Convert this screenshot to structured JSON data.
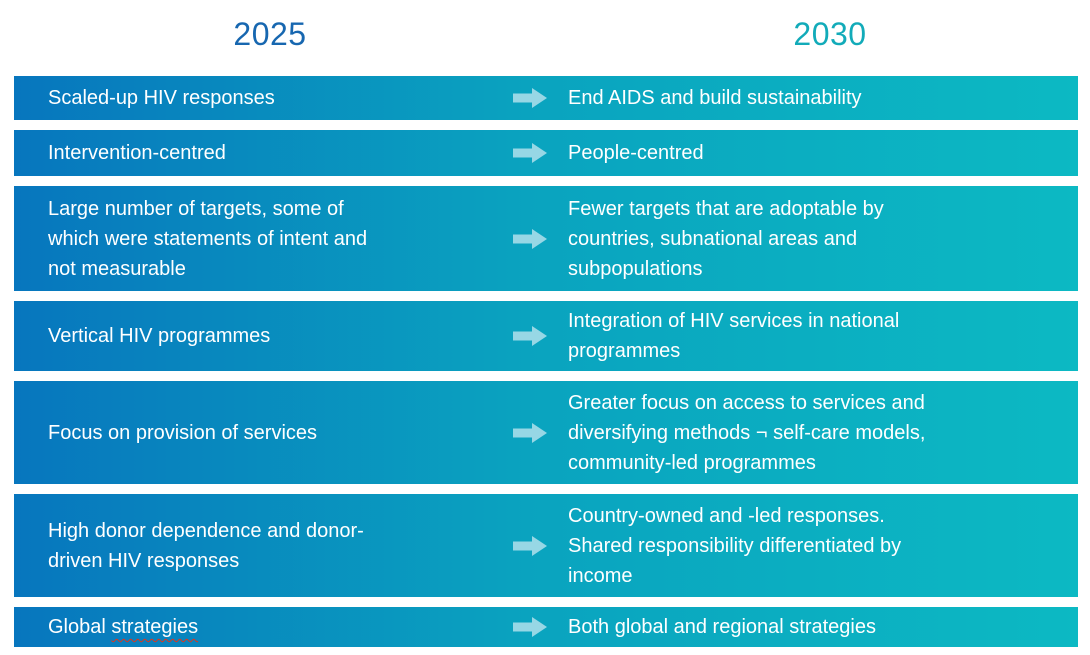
{
  "header": {
    "left_year": "2025",
    "right_year": "2030"
  },
  "colors": {
    "title-left": "#1767B0",
    "title-right": "#12ABB9",
    "bar-start": "#0776BE",
    "bar-mid": "#0AA3BF",
    "bar-end": "#0CB9C3",
    "arrow": "#97D7E5",
    "text": "#FFFFFF",
    "spellcheck": "#E0351B"
  },
  "icons": {
    "row_arrow": "right-arrow"
  },
  "rows": [
    {
      "left": "Scaled-up HIV responses",
      "right": "End AIDS and build sustainability"
    },
    {
      "left": "Intervention-centred",
      "right": "People-centred"
    },
    {
      "left": "Large number of targets, some of\nwhich were statements of intent and\nnot measurable",
      "right": "Fewer targets that are adoptable by\ncountries, subnational areas and\nsubpopulations"
    },
    {
      "left": "Vertical HIV programmes",
      "right": "Integration of HIV services in national\nprogrammes"
    },
    {
      "left": "Focus on provision of services",
      "right": "Greater focus on access to services and\ndiversifying methods ¬ self-care models,\ncommunity-led programmes"
    },
    {
      "left": "High donor dependence and donor-\ndriven HIV responses",
      "right": "Country-owned and -led responses.\nShared responsibility differentiated by\nincome"
    },
    {
      "left": "Global strategies",
      "misspelled": "strategies",
      "right": "Both global and regional strategies"
    }
  ]
}
